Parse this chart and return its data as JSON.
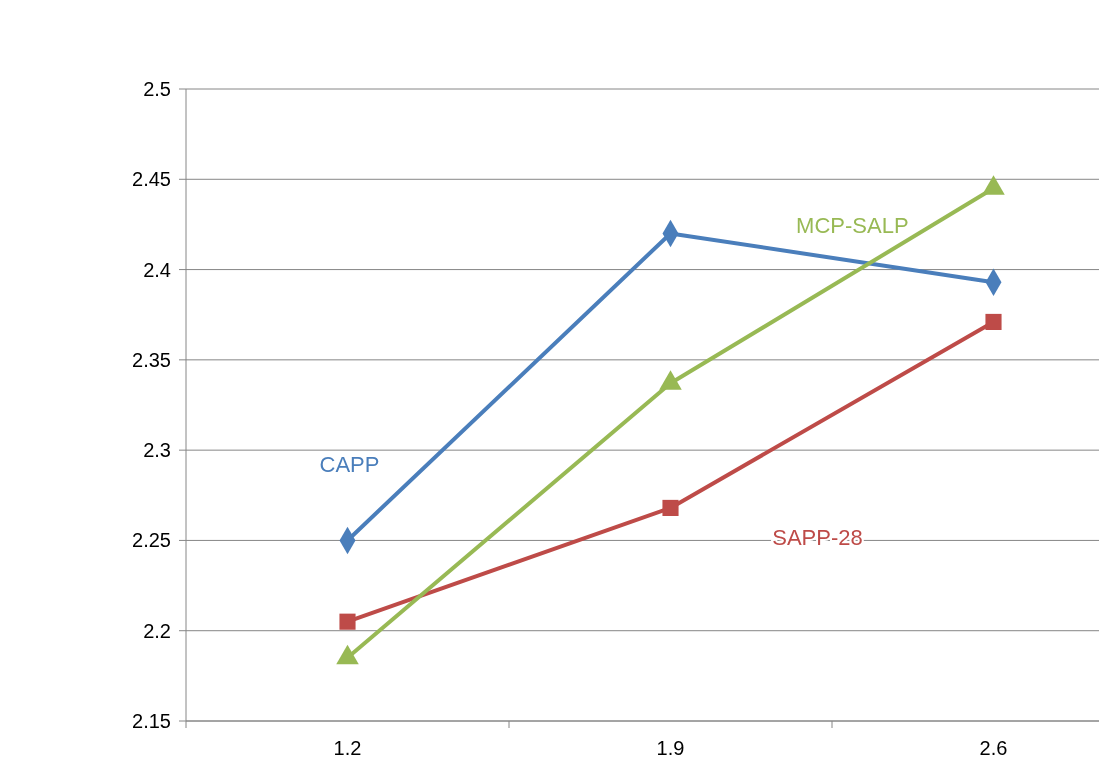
{
  "chart_data": {
    "type": "line",
    "categories": [
      "1.2",
      "1.9",
      "2.6"
    ],
    "series": [
      {
        "name": "CAPP",
        "color": "#4a7ebb",
        "marker": "diamond",
        "values": [
          2.25,
          2.42,
          2.393
        ]
      },
      {
        "name": "SAPP-28",
        "color": "#be4b48",
        "marker": "square",
        "values": [
          2.205,
          2.268,
          2.371
        ]
      },
      {
        "name": "MCP-SALP",
        "color": "#98b954",
        "marker": "triangle",
        "values": [
          2.185,
          2.337,
          2.445
        ]
      }
    ],
    "ylim": [
      2.15,
      2.5
    ],
    "yticks": [
      2.15,
      2.2,
      2.25,
      2.3,
      2.35,
      2.4,
      2.45,
      2.5
    ],
    "grid": "y",
    "legend": false,
    "line_style": "solid"
  }
}
